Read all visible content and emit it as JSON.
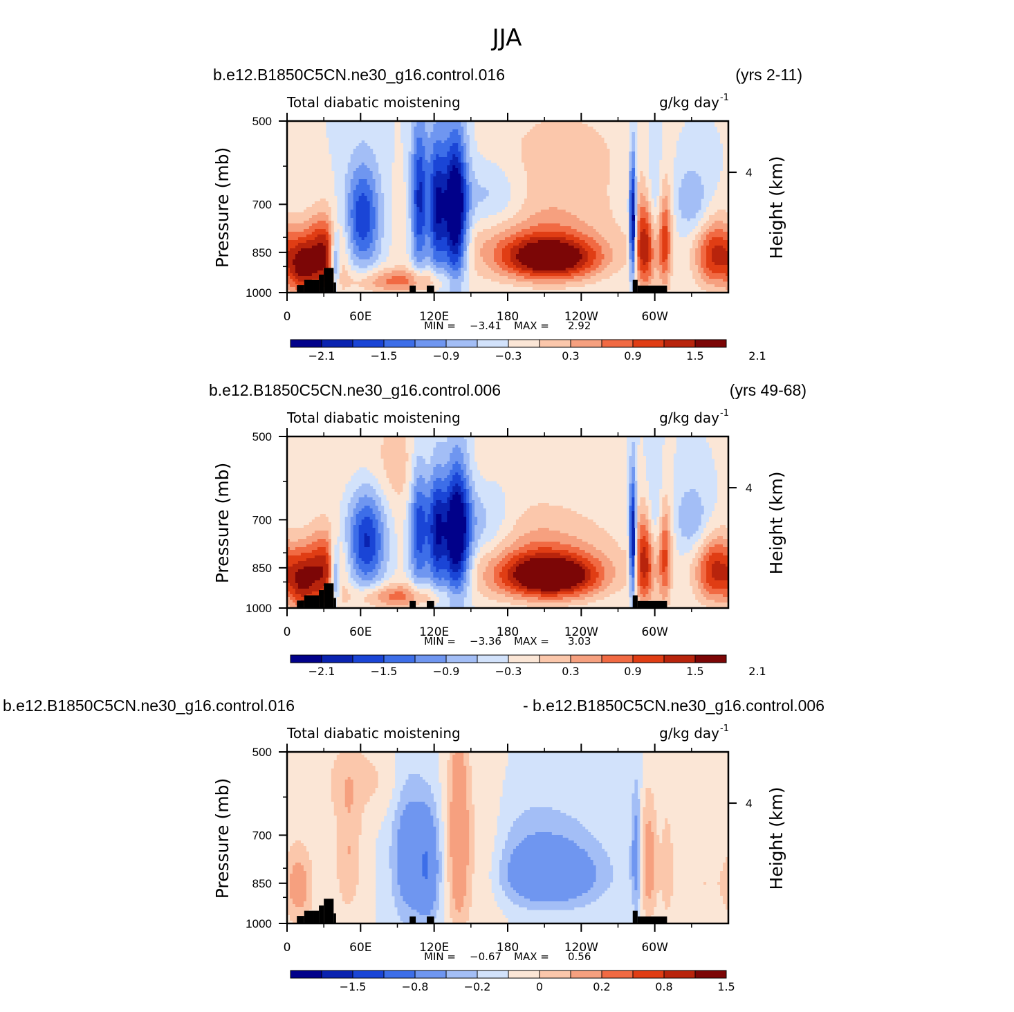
{
  "figure": {
    "title": "JJA"
  },
  "chart_data": [
    {
      "type": "heatmap",
      "left_title": "b.e12.B1850C5CN.ne30_g16.control.016",
      "right_title": "(yrs 2-11)",
      "subtitle_left": "Total diabatic moistening",
      "units": "g/kg day",
      "units_exp": "-1",
      "ylabel": "Pressure (mb)",
      "ylabel_right": "Height (km)",
      "yticks": [
        "500",
        "700",
        "850",
        "1000"
      ],
      "ytick_values": [
        500,
        700,
        850,
        1000
      ],
      "right_ticks": [
        "4"
      ],
      "xticks": [
        "0",
        "60E",
        "120E",
        "180",
        "120W",
        "60W"
      ],
      "xlim": [
        0,
        360
      ],
      "ylim": [
        1000,
        500
      ],
      "min_label": "MIN =",
      "min_value": "−3.41",
      "max_label": "MAX =",
      "max_value": "2.92",
      "colorbar_labels": [
        "−2.1",
        "−1.5",
        "−0.9",
        "−0.3",
        "0.3",
        "0.9",
        "1.5",
        "2.1"
      ],
      "features": [
        {
          "lon": 30,
          "p": 860,
          "sx": 10,
          "sp": 90,
          "v": 1.9
        },
        {
          "lon": 12,
          "p": 900,
          "sx": 8,
          "sp": 80,
          "v": 1.5
        },
        {
          "lon": 39,
          "p": 880,
          "sx": 3,
          "sp": 80,
          "v": -1.6
        },
        {
          "lon": 62,
          "p": 740,
          "sx": 10,
          "sp": 110,
          "v": -1.5
        },
        {
          "lon": 108,
          "p": 700,
          "sx": 5,
          "sp": 150,
          "v": -1.7
        },
        {
          "lon": 122,
          "p": 720,
          "sx": 5,
          "sp": 140,
          "v": -1.8
        },
        {
          "lon": 137,
          "p": 730,
          "sx": 7,
          "sp": 150,
          "v": -2.6
        },
        {
          "lon": 165,
          "p": 690,
          "sx": 22,
          "sp": 70,
          "v": -0.8
        },
        {
          "lon": 92,
          "p": 955,
          "sx": 28,
          "sp": 35,
          "v": 1.0
        },
        {
          "lon": 215,
          "p": 870,
          "sx": 28,
          "sp": 55,
          "v": 2.3
        },
        {
          "lon": 190,
          "p": 760,
          "sx": 55,
          "sp": 100,
          "v": 0.7
        },
        {
          "lon": 225,
          "p": 560,
          "sx": 40,
          "sp": 80,
          "v": 0.4
        },
        {
          "lon": 282,
          "p": 760,
          "sx": 2,
          "sp": 130,
          "v": -2.4
        },
        {
          "lon": 292,
          "p": 830,
          "sx": 6,
          "sp": 110,
          "v": 1.7
        },
        {
          "lon": 308,
          "p": 810,
          "sx": 4,
          "sp": 120,
          "v": 1.4
        },
        {
          "lon": 300,
          "p": 690,
          "sx": 5,
          "sp": 120,
          "v": -0.6
        },
        {
          "lon": 330,
          "p": 690,
          "sx": 10,
          "sp": 70,
          "v": -0.6
        },
        {
          "lon": 350,
          "p": 860,
          "sx": 12,
          "sp": 80,
          "v": 1.6
        }
      ]
    },
    {
      "type": "heatmap",
      "left_title": "b.e12.B1850C5CN.ne30_g16.control.006",
      "right_title": "(yrs 49-68)",
      "subtitle_left": "Total diabatic moistening",
      "units": "g/kg day",
      "units_exp": "-1",
      "ylabel": "Pressure (mb)",
      "ylabel_right": "Height (km)",
      "yticks": [
        "500",
        "700",
        "850",
        "1000"
      ],
      "ytick_values": [
        500,
        700,
        850,
        1000
      ],
      "right_ticks": [
        "4"
      ],
      "xticks": [
        "0",
        "60E",
        "120E",
        "180",
        "120W",
        "60W"
      ],
      "xlim": [
        0,
        360
      ],
      "ylim": [
        1000,
        500
      ],
      "min_label": "MIN =",
      "min_value": "−3.36",
      "max_label": "MAX =",
      "max_value": "3.03",
      "colorbar_labels": [
        "−2.1",
        "−1.5",
        "−0.9",
        "−0.3",
        "0.3",
        "0.9",
        "1.5",
        "2.1"
      ],
      "features": [
        {
          "lon": 30,
          "p": 860,
          "sx": 10,
          "sp": 90,
          "v": 1.7
        },
        {
          "lon": 12,
          "p": 900,
          "sx": 8,
          "sp": 80,
          "v": 1.4
        },
        {
          "lon": 39,
          "p": 880,
          "sx": 3,
          "sp": 80,
          "v": -1.5
        },
        {
          "lon": 65,
          "p": 760,
          "sx": 11,
          "sp": 110,
          "v": -1.6
        },
        {
          "lon": 108,
          "p": 720,
          "sx": 6,
          "sp": 150,
          "v": -1.6
        },
        {
          "lon": 122,
          "p": 730,
          "sx": 5,
          "sp": 140,
          "v": -1.7
        },
        {
          "lon": 138,
          "p": 740,
          "sx": 8,
          "sp": 150,
          "v": -2.6
        },
        {
          "lon": 160,
          "p": 720,
          "sx": 18,
          "sp": 80,
          "v": -0.8
        },
        {
          "lon": 92,
          "p": 955,
          "sx": 28,
          "sp": 35,
          "v": 1.0
        },
        {
          "lon": 215,
          "p": 880,
          "sx": 28,
          "sp": 55,
          "v": 2.5
        },
        {
          "lon": 190,
          "p": 780,
          "sx": 55,
          "sp": 100,
          "v": 0.7
        },
        {
          "lon": 100,
          "p": 560,
          "sx": 40,
          "sp": 80,
          "v": 0.5
        },
        {
          "lon": 282,
          "p": 770,
          "sx": 2,
          "sp": 130,
          "v": -2.3
        },
        {
          "lon": 292,
          "p": 830,
          "sx": 6,
          "sp": 110,
          "v": 1.6
        },
        {
          "lon": 308,
          "p": 810,
          "sx": 4,
          "sp": 120,
          "v": 1.3
        },
        {
          "lon": 300,
          "p": 700,
          "sx": 5,
          "sp": 120,
          "v": -0.6
        },
        {
          "lon": 330,
          "p": 700,
          "sx": 10,
          "sp": 70,
          "v": -0.6
        },
        {
          "lon": 350,
          "p": 860,
          "sx": 12,
          "sp": 80,
          "v": 1.6
        }
      ]
    },
    {
      "type": "heatmap",
      "left_title": "b.e12.B1850C5CN.ne30_g16.control.016",
      "right_title": "- b.e12.B1850C5CN.ne30_g16.control.006",
      "subtitle_left": "Total diabatic moistening",
      "units": "g/kg day",
      "units_exp": "-1",
      "ylabel": "Pressure (mb)",
      "ylabel_right": "Height (km)",
      "yticks": [
        "500",
        "700",
        "850",
        "1000"
      ],
      "ytick_values": [
        500,
        700,
        850,
        1000
      ],
      "right_ticks": [
        "4"
      ],
      "xticks": [
        "0",
        "60E",
        "120E",
        "180",
        "120W",
        "60W"
      ],
      "xlim": [
        0,
        360
      ],
      "ylim": [
        1000,
        500
      ],
      "min_label": "MIN =",
      "min_value": "−0.67",
      "max_label": "MAX =",
      "max_value": "0.56",
      "colorbar_labels": [
        "−1.5",
        "−0.8",
        "−0.2",
        "0",
        "0.2",
        "0.8",
        "1.5"
      ],
      "features": [
        {
          "lon": 10,
          "p": 860,
          "sx": 8,
          "sp": 100,
          "v": 0.25
        },
        {
          "lon": 50,
          "p": 750,
          "sx": 8,
          "sp": 150,
          "v": 0.2
        },
        {
          "lon": 100,
          "p": 760,
          "sx": 10,
          "sp": 160,
          "v": -0.35
        },
        {
          "lon": 115,
          "p": 800,
          "sx": 6,
          "sp": 120,
          "v": -0.4
        },
        {
          "lon": 140,
          "p": 700,
          "sx": 6,
          "sp": 220,
          "v": 0.35
        },
        {
          "lon": 160,
          "p": 760,
          "sx": 14,
          "sp": 150,
          "v": 0.15
        },
        {
          "lon": 215,
          "p": 830,
          "sx": 28,
          "sp": 70,
          "v": -0.4
        },
        {
          "lon": 205,
          "p": 720,
          "sx": 35,
          "sp": 100,
          "v": -0.15
        },
        {
          "lon": 285,
          "p": 760,
          "sx": 3,
          "sp": 140,
          "v": -0.3
        },
        {
          "lon": 295,
          "p": 780,
          "sx": 5,
          "sp": 140,
          "v": 0.3
        },
        {
          "lon": 310,
          "p": 790,
          "sx": 4,
          "sp": 140,
          "v": 0.15
        },
        {
          "lon": 340,
          "p": 850,
          "sx": 18,
          "sp": 100,
          "v": 0.1
        },
        {
          "lon": 60,
          "p": 560,
          "sx": 30,
          "sp": 60,
          "v": 0.12
        }
      ]
    }
  ],
  "colormap": [
    "#01018a",
    "#0a23b0",
    "#1a45d6",
    "#3d6ee8",
    "#6f96f0",
    "#a3bef6",
    "#d2e2fb",
    "#fbe6d6",
    "#fbc7ab",
    "#f6a07f",
    "#f16a43",
    "#e03d14",
    "#b8240c",
    "#7c0606"
  ],
  "topography": {
    "color": "#000000"
  }
}
